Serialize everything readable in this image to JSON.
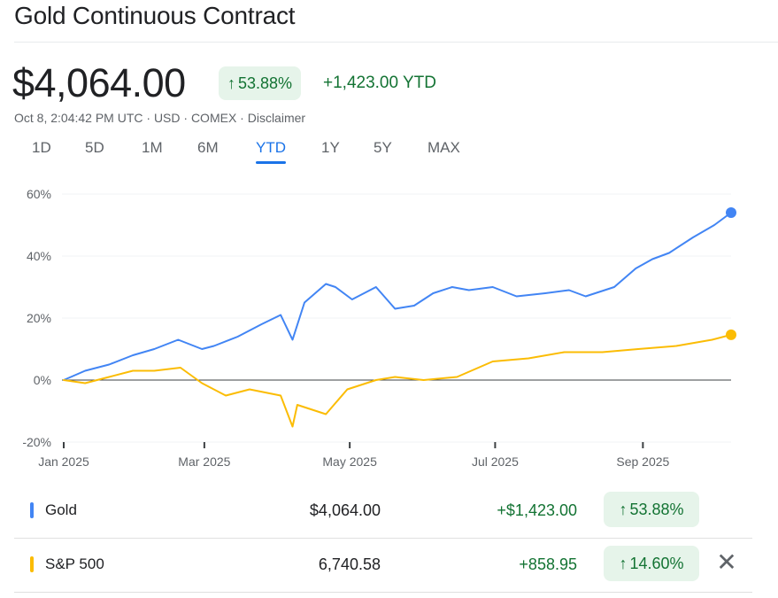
{
  "title": "Gold Continuous Contract",
  "price": "$4,064.00",
  "pct_change": "53.88%",
  "ytd_change": "+1,423.00 YTD",
  "meta": "Oct 8, 2:04:42 PM UTC · USD · COMEX · Disclaimer",
  "ranges": [
    "1D",
    "5D",
    "1M",
    "6M",
    "YTD",
    "1Y",
    "5Y",
    "MAX"
  ],
  "active_range": "YTD",
  "icons": {
    "up_arrow": "arrow-up-icon",
    "close": "close-icon"
  },
  "colors": {
    "gold": "#4285f4",
    "sp500": "#fbbc04",
    "positive": "#137333",
    "positive_bg": "#e6f4ea",
    "active_tab": "#1a73e8"
  },
  "chart_data": {
    "type": "line",
    "title": "",
    "xlabel": "",
    "ylabel": "",
    "y_unit": "%",
    "ylim": [
      -20,
      60
    ],
    "y_ticks": [
      60,
      40,
      20,
      0,
      -20
    ],
    "y_tick_labels": [
      "60%",
      "40%",
      "20%",
      "0%",
      "-20%"
    ],
    "x_ticks": [
      "2025-01-01",
      "2025-03-01",
      "2025-05-01",
      "2025-07-01",
      "2025-09-01"
    ],
    "x_tick_labels": [
      "Jan 2025",
      "Mar 2025",
      "May 2025",
      "Jul 2025",
      "Sep 2025"
    ],
    "xlim": [
      "2025-01-01",
      "2025-10-08"
    ],
    "grid": true,
    "series": [
      {
        "name": "Gold",
        "color": "#4285f4",
        "x": [
          "2025-01-01",
          "2025-01-10",
          "2025-01-20",
          "2025-01-30",
          "2025-02-08",
          "2025-02-18",
          "2025-02-28",
          "2025-03-05",
          "2025-03-15",
          "2025-03-25",
          "2025-04-02",
          "2025-04-07",
          "2025-04-12",
          "2025-04-21",
          "2025-04-25",
          "2025-05-02",
          "2025-05-12",
          "2025-05-20",
          "2025-05-28",
          "2025-06-05",
          "2025-06-13",
          "2025-06-20",
          "2025-06-30",
          "2025-07-10",
          "2025-07-22",
          "2025-08-01",
          "2025-08-08",
          "2025-08-20",
          "2025-08-29",
          "2025-09-05",
          "2025-09-12",
          "2025-09-22",
          "2025-10-01",
          "2025-10-08"
        ],
        "values": [
          0,
          3,
          5,
          8,
          10,
          13,
          10,
          11,
          14,
          18,
          21,
          13,
          25,
          31,
          30,
          26,
          30,
          23,
          24,
          28,
          30,
          29,
          30,
          27,
          28,
          29,
          27,
          30,
          36,
          39,
          41,
          46,
          50,
          54
        ]
      },
      {
        "name": "S&P 500",
        "color": "#fbbc04",
        "x": [
          "2025-01-01",
          "2025-01-10",
          "2025-01-20",
          "2025-01-30",
          "2025-02-08",
          "2025-02-19",
          "2025-02-28",
          "2025-03-10",
          "2025-03-20",
          "2025-04-02",
          "2025-04-07",
          "2025-04-09",
          "2025-04-21",
          "2025-04-30",
          "2025-05-12",
          "2025-05-20",
          "2025-06-01",
          "2025-06-15",
          "2025-06-30",
          "2025-07-15",
          "2025-07-30",
          "2025-08-15",
          "2025-08-30",
          "2025-09-15",
          "2025-09-30",
          "2025-10-08"
        ],
        "values": [
          0,
          -1,
          1,
          3,
          3,
          4,
          -1,
          -5,
          -3,
          -5,
          -15,
          -8,
          -11,
          -3,
          0,
          1,
          0,
          1,
          6,
          7,
          9,
          9,
          10,
          11,
          13,
          14.6
        ]
      }
    ]
  },
  "legend": [
    {
      "name": "Gold",
      "price": "$4,064.00",
      "change": "+$1,423.00",
      "pct": "53.88%"
    },
    {
      "name": "S&P 500",
      "price": "6,740.58",
      "change": "+858.95",
      "pct": "14.60%"
    }
  ]
}
